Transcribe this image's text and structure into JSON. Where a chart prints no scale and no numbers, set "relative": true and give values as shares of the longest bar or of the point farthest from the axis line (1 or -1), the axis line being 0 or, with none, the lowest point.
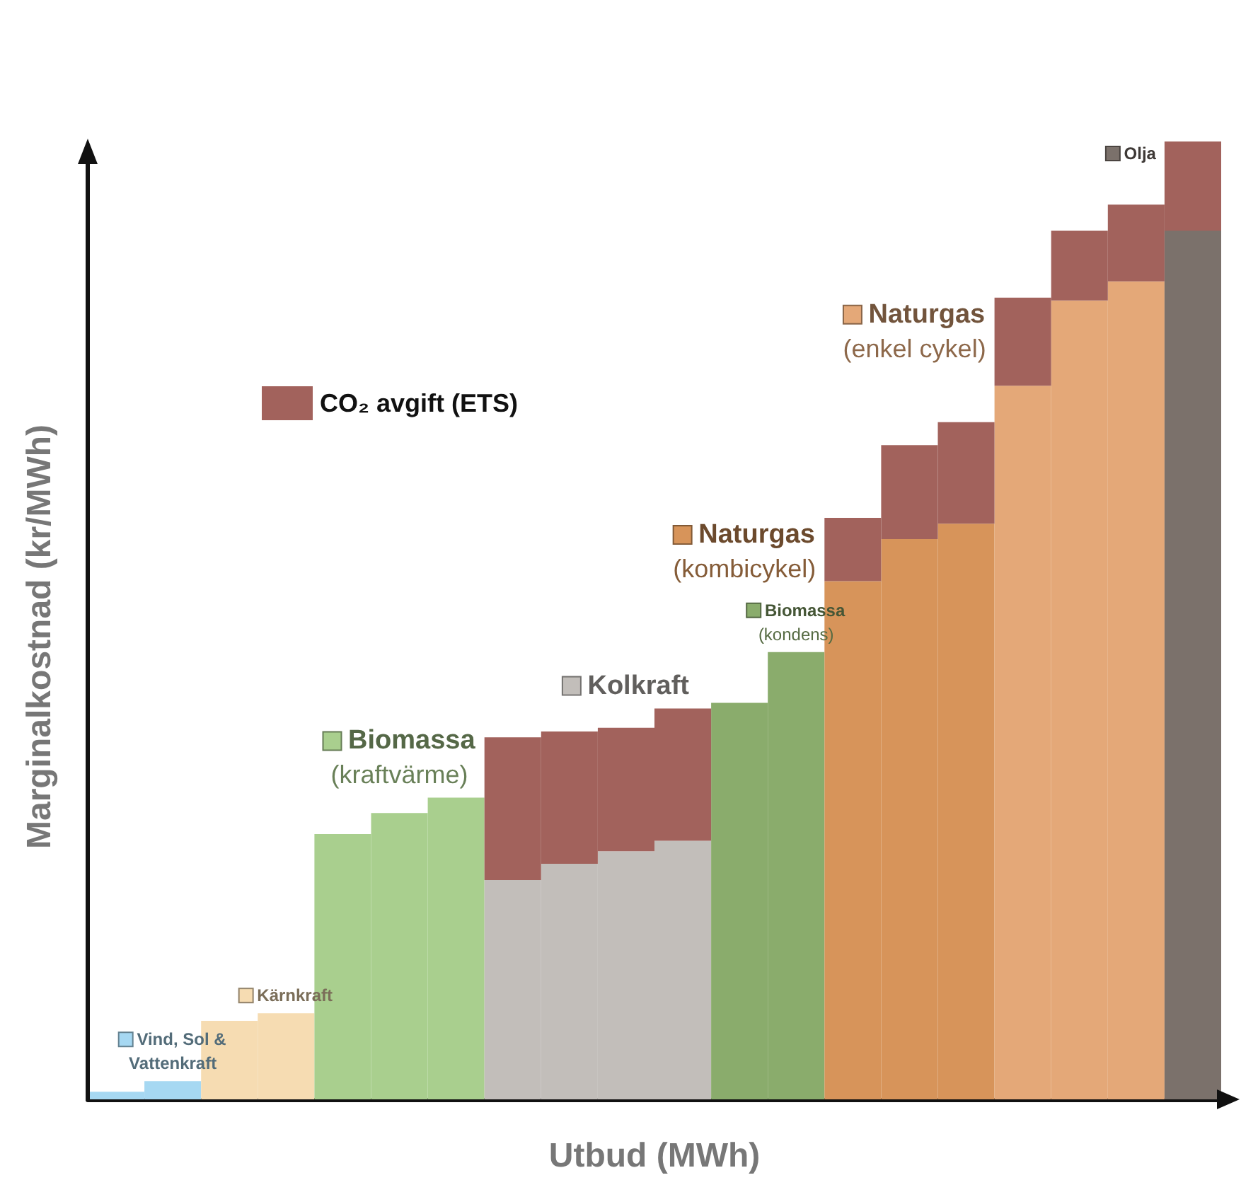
{
  "chart_data": {
    "type": "bar",
    "relative": true,
    "stacked": true,
    "xlabel": "Utbud (MWh)",
    "ylabel": "Marginalkostnad (kr/MWh)",
    "legend": "top left",
    "categories": [
      null,
      null,
      null,
      null,
      null,
      null,
      null,
      null,
      null,
      null,
      null,
      null,
      null,
      null,
      null,
      null,
      null,
      null,
      null,
      null
    ],
    "series": [
      {
        "name": "Vind, Sol & Vattenkraft",
        "color": "#a6d8f2",
        "values": [
          0.008,
          0.019,
          null,
          null,
          null,
          null,
          null,
          null,
          null,
          null,
          null,
          null,
          null,
          null,
          null,
          null,
          null,
          null,
          null,
          null
        ]
      },
      {
        "name": "Kärnkraft",
        "color": "#f6dcb2",
        "values": [
          null,
          null,
          0.082,
          0.09,
          null,
          null,
          null,
          null,
          null,
          null,
          null,
          null,
          null,
          null,
          null,
          null,
          null,
          null,
          null,
          null
        ]
      },
      {
        "name": "Biomassa (kraftvärme)",
        "color": "#a9cf8e",
        "values": [
          null,
          null,
          null,
          null,
          0.277,
          0.299,
          0.315,
          null,
          null,
          null,
          null,
          null,
          null,
          null,
          null,
          null,
          null,
          null,
          null,
          null
        ]
      },
      {
        "name": "Kolkraft",
        "color": "#c2beba",
        "values": [
          null,
          null,
          null,
          null,
          null,
          null,
          null,
          0.229,
          0.246,
          0.259,
          0.27,
          null,
          null,
          null,
          null,
          null,
          null,
          null,
          null,
          null
        ]
      },
      {
        "name": "Biomassa (kondens)",
        "color": "#8aac6c",
        "values": [
          null,
          null,
          null,
          null,
          null,
          null,
          null,
          null,
          null,
          null,
          null,
          0.414,
          0.467,
          null,
          null,
          null,
          null,
          null,
          null,
          null
        ]
      },
      {
        "name": "Naturgas (kombicykel)",
        "color": "#d7945a",
        "values": [
          null,
          null,
          null,
          null,
          null,
          null,
          null,
          null,
          null,
          null,
          null,
          null,
          null,
          0.541,
          0.585,
          0.601,
          null,
          null,
          null,
          null
        ]
      },
      {
        "name": "Naturgas (enkel cykel)",
        "color": "#e4a878",
        "values": [
          null,
          null,
          null,
          null,
          null,
          null,
          null,
          null,
          null,
          null,
          null,
          null,
          null,
          null,
          null,
          null,
          0.745,
          0.834,
          0.854,
          null
        ]
      },
      {
        "name": "Olja",
        "color": "#7b716b",
        "values": [
          null,
          null,
          null,
          null,
          null,
          null,
          null,
          null,
          null,
          null,
          null,
          null,
          null,
          null,
          null,
          null,
          null,
          null,
          null,
          0.907
        ]
      },
      {
        "name": "CO₂ avgift (ETS)",
        "color": "#a2625c",
        "values": [
          null,
          null,
          null,
          null,
          null,
          null,
          null,
          0.149,
          0.138,
          0.129,
          0.138,
          null,
          null,
          0.066,
          0.098,
          0.106,
          0.092,
          0.073,
          0.08,
          0.093
        ]
      }
    ]
  }
}
